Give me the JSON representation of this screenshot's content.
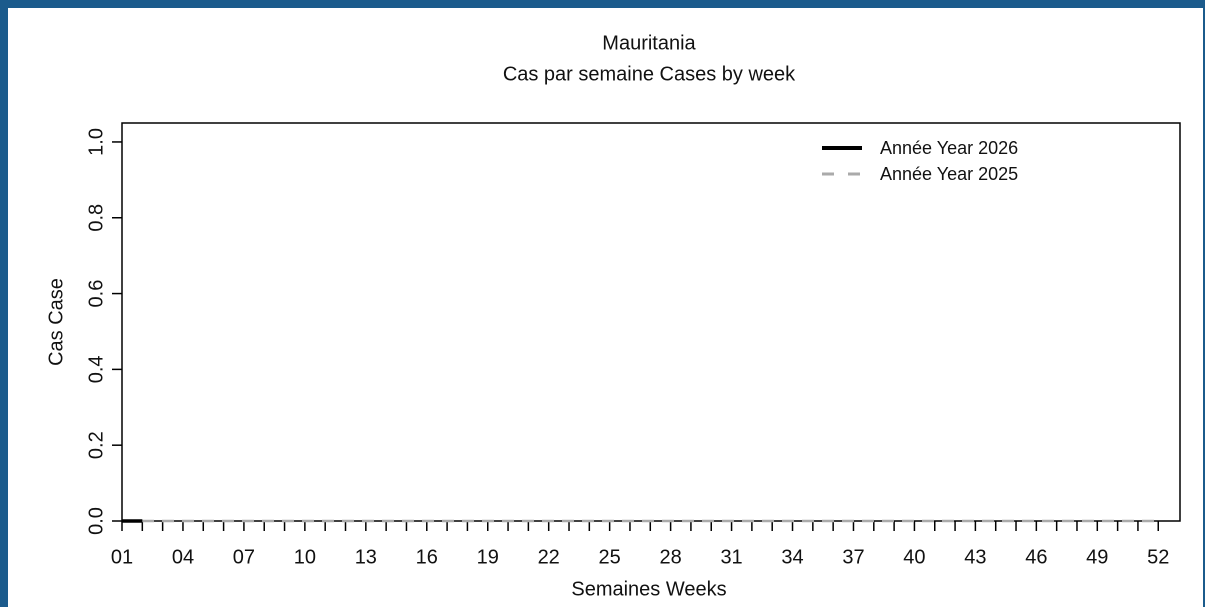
{
  "chart_data": {
    "type": "line",
    "title": "Mauritania",
    "subtitle": "Cas par semaine Cases by week",
    "x_label": "Semaines Weeks",
    "y_label": "Cas Case",
    "categories": [
      "01",
      null,
      null,
      "04",
      null,
      null,
      "07",
      null,
      null,
      "10",
      null,
      null,
      "13",
      null,
      null,
      "16",
      null,
      null,
      "19",
      null,
      null,
      "22",
      null,
      null,
      "25",
      null,
      null,
      "28",
      null,
      null,
      "31",
      null,
      null,
      "34",
      null,
      null,
      "37",
      null,
      null,
      "40",
      null,
      null,
      "43",
      null,
      null,
      "46",
      null,
      null,
      "49",
      null,
      null,
      "52"
    ],
    "series": [
      {
        "name": "Année Year 2026",
        "color": "#000000",
        "dash": false,
        "values": [
          0,
          0,
          null,
          null,
          null,
          null,
          null,
          null,
          null,
          null,
          null,
          null,
          null,
          null,
          null,
          null,
          null,
          null,
          null,
          null,
          null,
          null,
          null,
          null,
          null,
          null,
          null,
          null,
          null,
          null,
          null,
          null,
          null,
          null,
          null,
          null,
          null,
          null,
          null,
          null,
          null,
          null,
          null,
          null,
          null,
          null,
          null,
          null,
          null,
          null,
          null,
          null
        ]
      },
      {
        "name": "Année Year 2025",
        "color": "#aaaaaa",
        "dash": true,
        "values": [
          0,
          0,
          0,
          0,
          0,
          0,
          0,
          0,
          0,
          0,
          0,
          0,
          0,
          0,
          0,
          0,
          0,
          0,
          0,
          0,
          0,
          0,
          0,
          0,
          0,
          0,
          0,
          0,
          0,
          0,
          0,
          0,
          0,
          0,
          0,
          0,
          0,
          0,
          0,
          0,
          0,
          0,
          0,
          0,
          0,
          0,
          0,
          0,
          0,
          0,
          0,
          0
        ]
      }
    ],
    "ylim": [
      0,
      1.05
    ],
    "yticks": [
      {
        "value": 0,
        "label": "0.0"
      },
      0.2,
      0.4,
      0.6,
      0.8,
      {
        "value": 1,
        "label": "1.0"
      }
    ],
    "legend": "topright"
  }
}
